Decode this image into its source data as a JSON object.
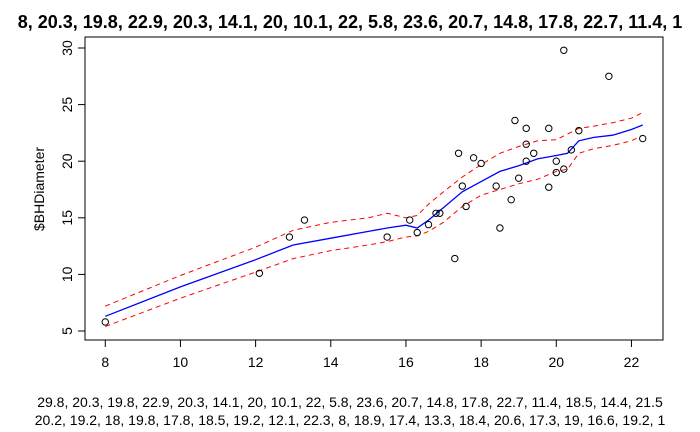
{
  "chart_data": {
    "type": "scatter",
    "title": "8, 20.3, 19.8, 22.9, 20.3, 14.1, 20, 10.1, 22, 5.8, 23.6, 20.7, 14.8, 17.8, 22.7, 11.4, 1",
    "xlabel_lines": [
      "29.8, 20.3, 19.8, 22.9, 20.3, 14.1, 20, 10.1, 22, 5.8, 23.6, 20.7, 14.8, 17.8, 22.7, 11.4, 18.5, 14.4, 21.5",
      "20.2, 19.2, 18, 19.8, 17.8, 18.5, 19.2, 12.1, 22.3, 8, 18.9, 17.4, 13.3, 18.4, 20.6, 17.3, 19, 16.6, 19.2, 1"
    ],
    "ylabel": "$BHDiameter",
    "xlim": [
      7.7,
      22.6
    ],
    "ylim": [
      5,
      30
    ],
    "x_ticks": [
      8,
      10,
      12,
      14,
      16,
      18,
      20,
      22
    ],
    "y_ticks": [
      5,
      10,
      15,
      20,
      25,
      30
    ],
    "grid": false,
    "points": {
      "x": [
        8,
        12.1,
        12.9,
        13.3,
        15.5,
        16.1,
        16.3,
        16.6,
        16.8,
        16.9,
        17.3,
        17.4,
        17.5,
        17.6,
        17.8,
        18,
        18.4,
        18.5,
        18.8,
        18.9,
        19,
        19.2,
        19.2,
        19.2,
        19.4,
        19.8,
        19.8,
        20,
        20,
        20.2,
        20.2,
        20.4,
        20.6,
        21.4,
        22.3
      ],
      "y": [
        5.8,
        10.1,
        13.3,
        14.8,
        13.3,
        14.8,
        13.7,
        14.4,
        15.4,
        15.4,
        11.4,
        20.7,
        17.8,
        16,
        20.3,
        19.8,
        17.8,
        14.1,
        16.6,
        23.6,
        18.5,
        20,
        22.9,
        21.5,
        20.7,
        22.9,
        17.7,
        20,
        19,
        29.8,
        19.3,
        21,
        22.7,
        27.5,
        22
      ]
    },
    "fit": {
      "color": "#0000ff",
      "x": [
        8,
        10,
        12,
        13,
        14,
        15,
        15.5,
        16,
        16.3,
        16.6,
        17,
        17.5,
        18,
        18.5,
        19,
        19.5,
        20,
        20.3,
        20.6,
        21,
        21.5,
        22,
        22.3
      ],
      "y": [
        6.3,
        8.9,
        11.3,
        12.6,
        13.2,
        13.8,
        14.1,
        14.35,
        14.1,
        14.8,
        15.9,
        17.3,
        18.2,
        19.1,
        19.6,
        20.2,
        20.5,
        20.7,
        21.8,
        22.1,
        22.3,
        22.8,
        23.2
      ]
    },
    "upper_band": {
      "color": "#ff0000",
      "x": [
        8,
        10,
        12,
        13,
        14,
        15,
        15.5,
        16,
        16.3,
        16.6,
        17,
        17.5,
        18,
        18.5,
        19,
        19.5,
        20,
        20.3,
        20.6,
        21,
        21.5,
        22,
        22.3
      ],
      "y": [
        7.2,
        9.9,
        12.4,
        13.9,
        14.6,
        15.0,
        15.4,
        15.0,
        15.2,
        16.2,
        17.3,
        18.6,
        19.7,
        20.7,
        21.3,
        21.8,
        21.9,
        22.4,
        22.9,
        23.1,
        23.4,
        23.8,
        24.3
      ]
    },
    "lower_band": {
      "color": "#ff0000",
      "x": [
        8,
        10,
        12,
        13,
        14,
        15,
        15.5,
        16,
        16.3,
        16.6,
        17,
        17.5,
        18,
        18.5,
        19,
        19.5,
        20,
        20.3,
        20.6,
        21,
        21.5,
        22,
        22.3
      ],
      "y": [
        5.4,
        7.9,
        10.2,
        11.4,
        12.1,
        12.6,
        12.9,
        13.3,
        13.4,
        13.8,
        14.6,
        16.0,
        17.0,
        17.5,
        18.0,
        18.4,
        19.1,
        19.3,
        20.7,
        21.1,
        21.4,
        21.8,
        22.3
      ]
    }
  }
}
